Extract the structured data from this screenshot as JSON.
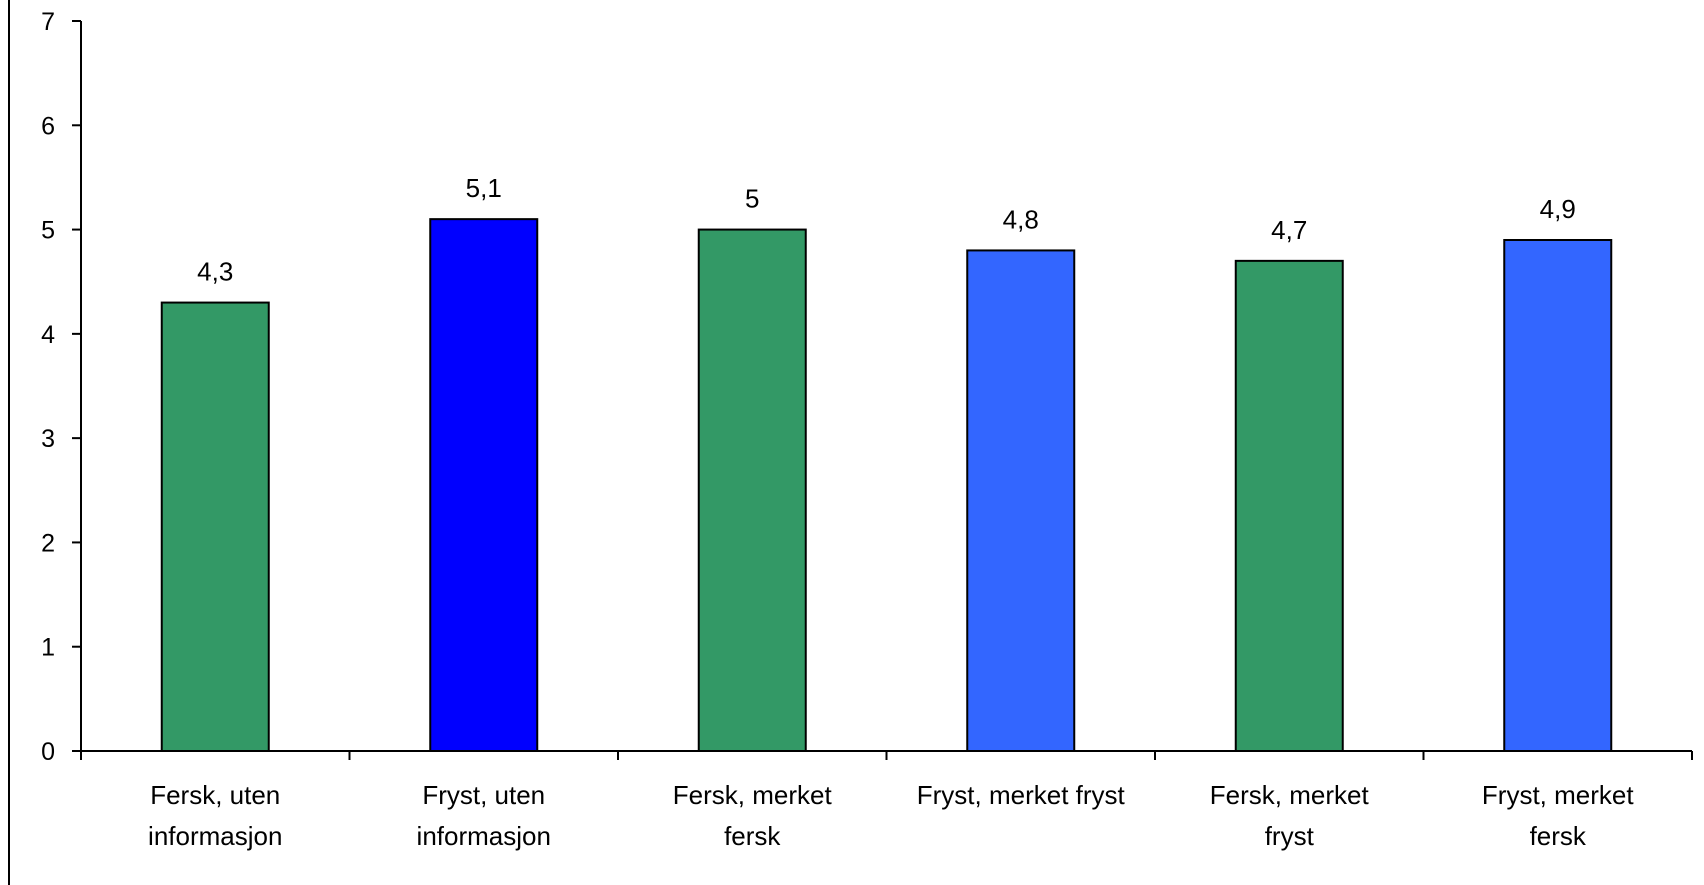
{
  "chart_data": {
    "type": "bar",
    "categories": [
      [
        "Fersk, uten",
        "informasjon"
      ],
      [
        "Fryst, uten",
        "informasjon"
      ],
      [
        "Fersk, merket",
        "fersk"
      ],
      [
        "Fryst, merket fryst"
      ],
      [
        "Fersk, merket",
        "fryst"
      ],
      [
        "Fryst, merket",
        "fersk"
      ]
    ],
    "values": [
      4.3,
      5.1,
      5,
      4.8,
      4.7,
      4.9
    ],
    "data_labels": [
      "4,3",
      "5,1",
      "5",
      "4,8",
      "4,7",
      "4,9"
    ],
    "bar_colors": [
      "#339966",
      "#0000FF",
      "#339966",
      "#3366FF",
      "#339966",
      "#3366FF"
    ],
    "ylim": [
      0,
      7
    ],
    "yticks": [
      "0",
      "1",
      "2",
      "3",
      "4",
      "5",
      "6",
      "7"
    ],
    "grid": false,
    "legend": "none"
  }
}
